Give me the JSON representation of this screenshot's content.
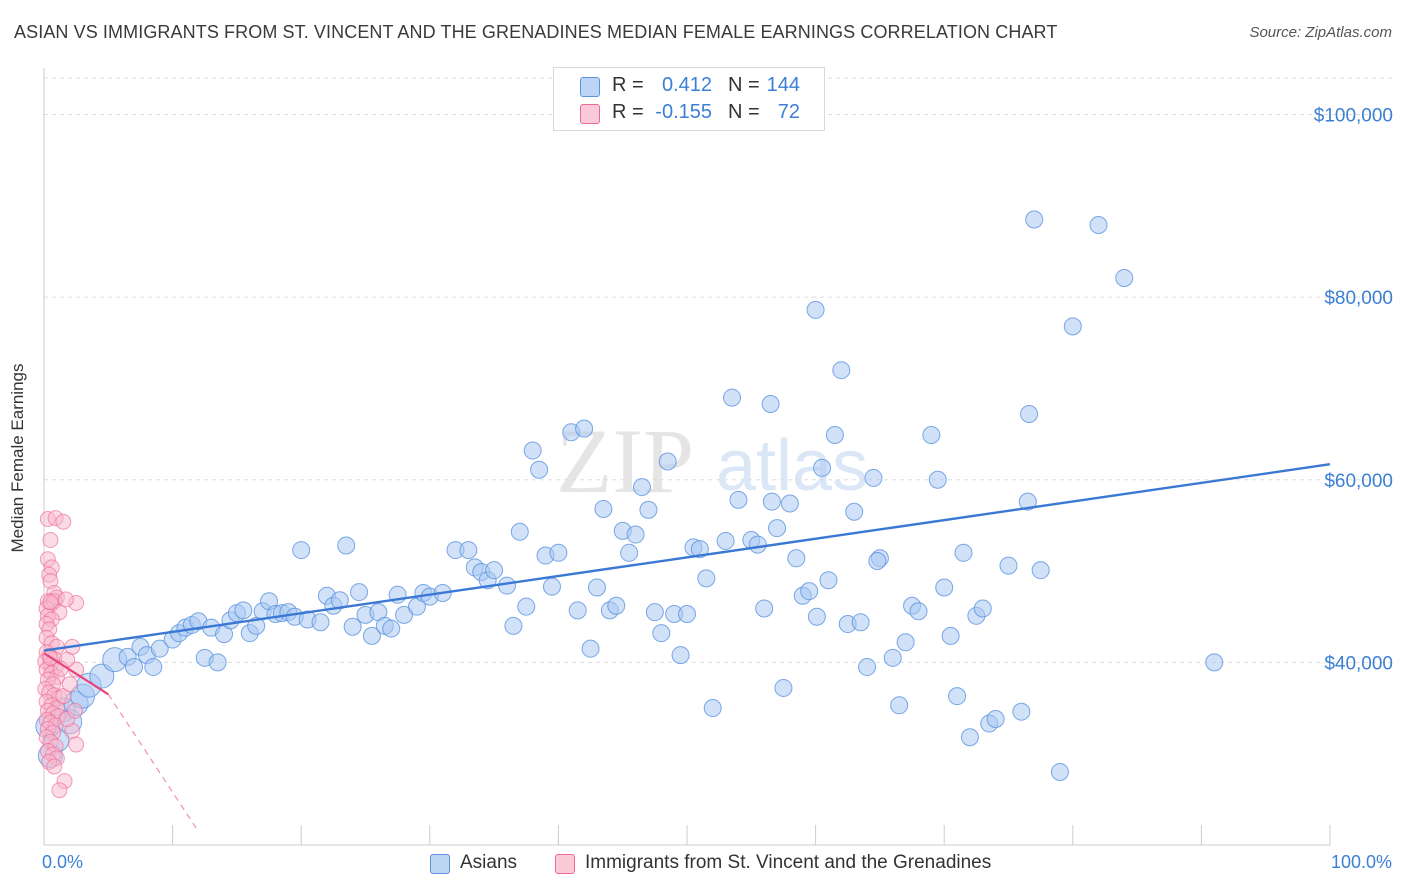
{
  "header": {
    "title": "ASIAN VS IMMIGRANTS FROM ST. VINCENT AND THE GRENADINES MEDIAN FEMALE EARNINGS CORRELATION CHART",
    "source": "Source: ZipAtlas.com"
  },
  "watermark": {
    "zip": "ZIP",
    "atlas": "atlas"
  },
  "legend_top": {
    "rows": [
      {
        "r_label": "R =",
        "r_value": "0.412",
        "n_label": "N =",
        "n_value": "144",
        "color": "#a9c8f2"
      },
      {
        "r_label": "R =",
        "r_value": "-0.155",
        "n_label": "N =",
        "n_value": "72",
        "color": "#f7b7cb"
      }
    ]
  },
  "legend_bottom": {
    "items": [
      {
        "label": "Asians",
        "color": "#a9c8f2"
      },
      {
        "label": "Immigrants from St. Vincent and the Grenadines",
        "color": "#f7b7cb"
      }
    ]
  },
  "chart_data": {
    "type": "scatter",
    "title": "ASIAN VS IMMIGRANTS FROM ST. VINCENT AND THE GRENADINES MEDIAN FEMALE EARNINGS CORRELATION CHART",
    "xlabel": "",
    "ylabel": "Median Female Earnings",
    "x_tick_labels": [
      "0.0%",
      "100.0%"
    ],
    "y_tick_labels": [
      "$100,000",
      "$80,000",
      "$60,000",
      "$40,000"
    ],
    "y_ticks": [
      100000,
      80000,
      60000,
      40000
    ],
    "xlim": [
      0,
      100
    ],
    "ylim": [
      20000,
      104000
    ],
    "grid": true,
    "legend_position": "top-center",
    "colors": {
      "asians": "#5b93e0",
      "asians_fill": "#a9c8f2",
      "stvincent": "#ee6a96",
      "stvincent_fill": "#f7b7cb",
      "tick_text": "#3b7fd6"
    },
    "series": [
      {
        "name": "Asians",
        "r": 0.412,
        "n": 144,
        "trend": {
          "x": [
            0,
            100
          ],
          "y": [
            41300,
            61700
          ],
          "style": "solid"
        },
        "points": [
          [
            0.3,
            33000
          ],
          [
            0.5,
            29800
          ],
          [
            1,
            31500
          ],
          [
            1.5,
            34800
          ],
          [
            2,
            33500
          ],
          [
            2.5,
            35500
          ],
          [
            3,
            36300
          ],
          [
            3.5,
            37500
          ],
          [
            4.5,
            38500
          ],
          [
            5.5,
            40300
          ],
          [
            6.5,
            40600
          ],
          [
            7,
            39500
          ],
          [
            7.5,
            41700
          ],
          [
            8,
            40800
          ],
          [
            8.5,
            39500
          ],
          [
            9,
            41500
          ],
          [
            10,
            42500
          ],
          [
            10.5,
            43200
          ],
          [
            11,
            43800
          ],
          [
            11.5,
            44100
          ],
          [
            12,
            44500
          ],
          [
            12.5,
            40500
          ],
          [
            13,
            43800
          ],
          [
            13.5,
            40000
          ],
          [
            14,
            43100
          ],
          [
            14.5,
            44600
          ],
          [
            15,
            45400
          ],
          [
            15.5,
            45700
          ],
          [
            16,
            43200
          ],
          [
            16.5,
            44000
          ],
          [
            17,
            45600
          ],
          [
            17.5,
            46700
          ],
          [
            18,
            45300
          ],
          [
            18.5,
            45400
          ],
          [
            19,
            45500
          ],
          [
            19.5,
            45000
          ],
          [
            20,
            52300
          ],
          [
            20.5,
            44700
          ],
          [
            21.5,
            44400
          ],
          [
            22,
            47300
          ],
          [
            22.5,
            46200
          ],
          [
            23,
            46800
          ],
          [
            23.5,
            52800
          ],
          [
            24,
            43900
          ],
          [
            24.5,
            47700
          ],
          [
            25,
            45200
          ],
          [
            25.5,
            42900
          ],
          [
            26,
            45500
          ],
          [
            26.5,
            44000
          ],
          [
            27,
            43700
          ],
          [
            27.5,
            47400
          ],
          [
            28,
            45200
          ],
          [
            29,
            46100
          ],
          [
            29.5,
            47600
          ],
          [
            30,
            47200
          ],
          [
            31,
            47600
          ],
          [
            32,
            52300
          ],
          [
            33,
            52300
          ],
          [
            33.5,
            50400
          ],
          [
            34,
            49900
          ],
          [
            34.5,
            49000
          ],
          [
            35,
            50100
          ],
          [
            36,
            48400
          ],
          [
            36.5,
            44000
          ],
          [
            37,
            54300
          ],
          [
            37.5,
            46100
          ],
          [
            38,
            63200
          ],
          [
            38.5,
            61100
          ],
          [
            39,
            51700
          ],
          [
            39.5,
            48300
          ],
          [
            40,
            52000
          ],
          [
            41,
            65200
          ],
          [
            41.5,
            45700
          ],
          [
            42,
            65600
          ],
          [
            42.5,
            41500
          ],
          [
            43,
            48200
          ],
          [
            43.5,
            56800
          ],
          [
            44,
            45700
          ],
          [
            44.5,
            46200
          ],
          [
            45,
            54400
          ],
          [
            45.5,
            52000
          ],
          [
            46,
            54000
          ],
          [
            46.5,
            59200
          ],
          [
            47,
            56700
          ],
          [
            47.5,
            45500
          ],
          [
            48,
            43200
          ],
          [
            48.5,
            62000
          ],
          [
            49,
            45300
          ],
          [
            49.5,
            40800
          ],
          [
            50,
            45300
          ],
          [
            50.5,
            52600
          ],
          [
            51,
            52400
          ],
          [
            51.5,
            49200
          ],
          [
            52,
            35000
          ],
          [
            53,
            53300
          ],
          [
            53.5,
            69000
          ],
          [
            54,
            57800
          ],
          [
            55,
            53400
          ],
          [
            55.5,
            52900
          ],
          [
            56,
            45900
          ],
          [
            56.5,
            68300
          ],
          [
            56.6,
            57600
          ],
          [
            57,
            54700
          ],
          [
            57.5,
            37200
          ],
          [
            58,
            57400
          ],
          [
            58.5,
            51400
          ],
          [
            59,
            47300
          ],
          [
            59.5,
            47800
          ],
          [
            60,
            78600
          ],
          [
            60.5,
            61300
          ],
          [
            61,
            49000
          ],
          [
            61.5,
            64900
          ],
          [
            62,
            72000
          ],
          [
            62.5,
            44200
          ],
          [
            63,
            56500
          ],
          [
            63.5,
            44400
          ],
          [
            64,
            39500
          ],
          [
            64.5,
            60200
          ],
          [
            65,
            51400
          ],
          [
            66,
            40500
          ],
          [
            66.5,
            35300
          ],
          [
            67,
            42200
          ],
          [
            67.5,
            46200
          ],
          [
            68,
            45600
          ],
          [
            69,
            64900
          ],
          [
            69.5,
            60000
          ],
          [
            70,
            48200
          ],
          [
            70.5,
            42900
          ],
          [
            71,
            36300
          ],
          [
            71.5,
            52000
          ],
          [
            72,
            31800
          ],
          [
            72.5,
            45100
          ],
          [
            73,
            45900
          ],
          [
            73.5,
            33300
          ],
          [
            74,
            33800
          ],
          [
            75,
            50600
          ],
          [
            76,
            34600
          ],
          [
            76.5,
            57600
          ],
          [
            76.6,
            67200
          ],
          [
            77,
            88500
          ],
          [
            77.5,
            50100
          ],
          [
            79,
            28000
          ],
          [
            80,
            76800
          ],
          [
            82,
            87900
          ],
          [
            84,
            82100
          ],
          [
            91,
            40000
          ],
          [
            64.8,
            51100
          ],
          [
            60.1,
            45000
          ]
        ]
      },
      {
        "name": "Immigrants from St. Vincent and the Grenadines",
        "r": -0.155,
        "n": 72,
        "trend": {
          "x": [
            0,
            5
          ],
          "y": [
            41000,
            36500
          ],
          "style": "solid",
          "extended_x": [
            5,
            12
          ],
          "extended_y": [
            36500,
            21500
          ],
          "extended_style": "dashed"
        },
        "points": [
          [
            0.3,
            55700
          ],
          [
            0.5,
            53400
          ],
          [
            0.3,
            51300
          ],
          [
            0.6,
            50400
          ],
          [
            0.4,
            49600
          ],
          [
            0.5,
            48900
          ],
          [
            0.8,
            47600
          ],
          [
            1,
            47100
          ],
          [
            0.3,
            46700
          ],
          [
            0.6,
            46400
          ],
          [
            0.8,
            46700
          ],
          [
            0.2,
            45900
          ],
          [
            1.2,
            45500
          ],
          [
            0.3,
            45100
          ],
          [
            0.6,
            44700
          ],
          [
            0.2,
            44200
          ],
          [
            0.4,
            43600
          ],
          [
            0.2,
            42700
          ],
          [
            0.6,
            42100
          ],
          [
            1,
            41700
          ],
          [
            0.2,
            41100
          ],
          [
            0.4,
            40700
          ],
          [
            0.8,
            40400
          ],
          [
            0.1,
            40100
          ],
          [
            0.5,
            39800
          ],
          [
            0.9,
            39500
          ],
          [
            0.2,
            39200
          ],
          [
            0.6,
            38800
          ],
          [
            1,
            38400
          ],
          [
            0.3,
            38100
          ],
          [
            0.7,
            37600
          ],
          [
            0.1,
            37100
          ],
          [
            0.4,
            36700
          ],
          [
            0.8,
            36400
          ],
          [
            1.2,
            36100
          ],
          [
            0.2,
            35700
          ],
          [
            0.6,
            35300
          ],
          [
            1,
            35000
          ],
          [
            0.3,
            34700
          ],
          [
            0.7,
            34400
          ],
          [
            1.1,
            34100
          ],
          [
            0.2,
            33700
          ],
          [
            0.5,
            33400
          ],
          [
            0.9,
            33100
          ],
          [
            0.3,
            32700
          ],
          [
            0.7,
            32300
          ],
          [
            0.2,
            31800
          ],
          [
            0.5,
            31300
          ],
          [
            0.9,
            30800
          ],
          [
            0.3,
            30300
          ],
          [
            0.7,
            29900
          ],
          [
            1,
            29500
          ],
          [
            0.4,
            29100
          ],
          [
            0.8,
            28600
          ],
          [
            1.6,
            27000
          ],
          [
            1.2,
            26000
          ],
          [
            2.5,
            31000
          ],
          [
            2.2,
            32500
          ],
          [
            1.8,
            33800
          ],
          [
            2.4,
            34700
          ],
          [
            1.5,
            36300
          ],
          [
            2,
            37600
          ],
          [
            2.5,
            39200
          ],
          [
            1.8,
            40300
          ],
          [
            2.2,
            41700
          ],
          [
            0.5,
            46600
          ],
          [
            2.5,
            46500
          ],
          [
            1.7,
            46900
          ],
          [
            0.9,
            55800
          ],
          [
            1.5,
            55400
          ],
          [
            0.5,
            40500
          ],
          [
            1.3,
            39300
          ]
        ]
      }
    ]
  }
}
